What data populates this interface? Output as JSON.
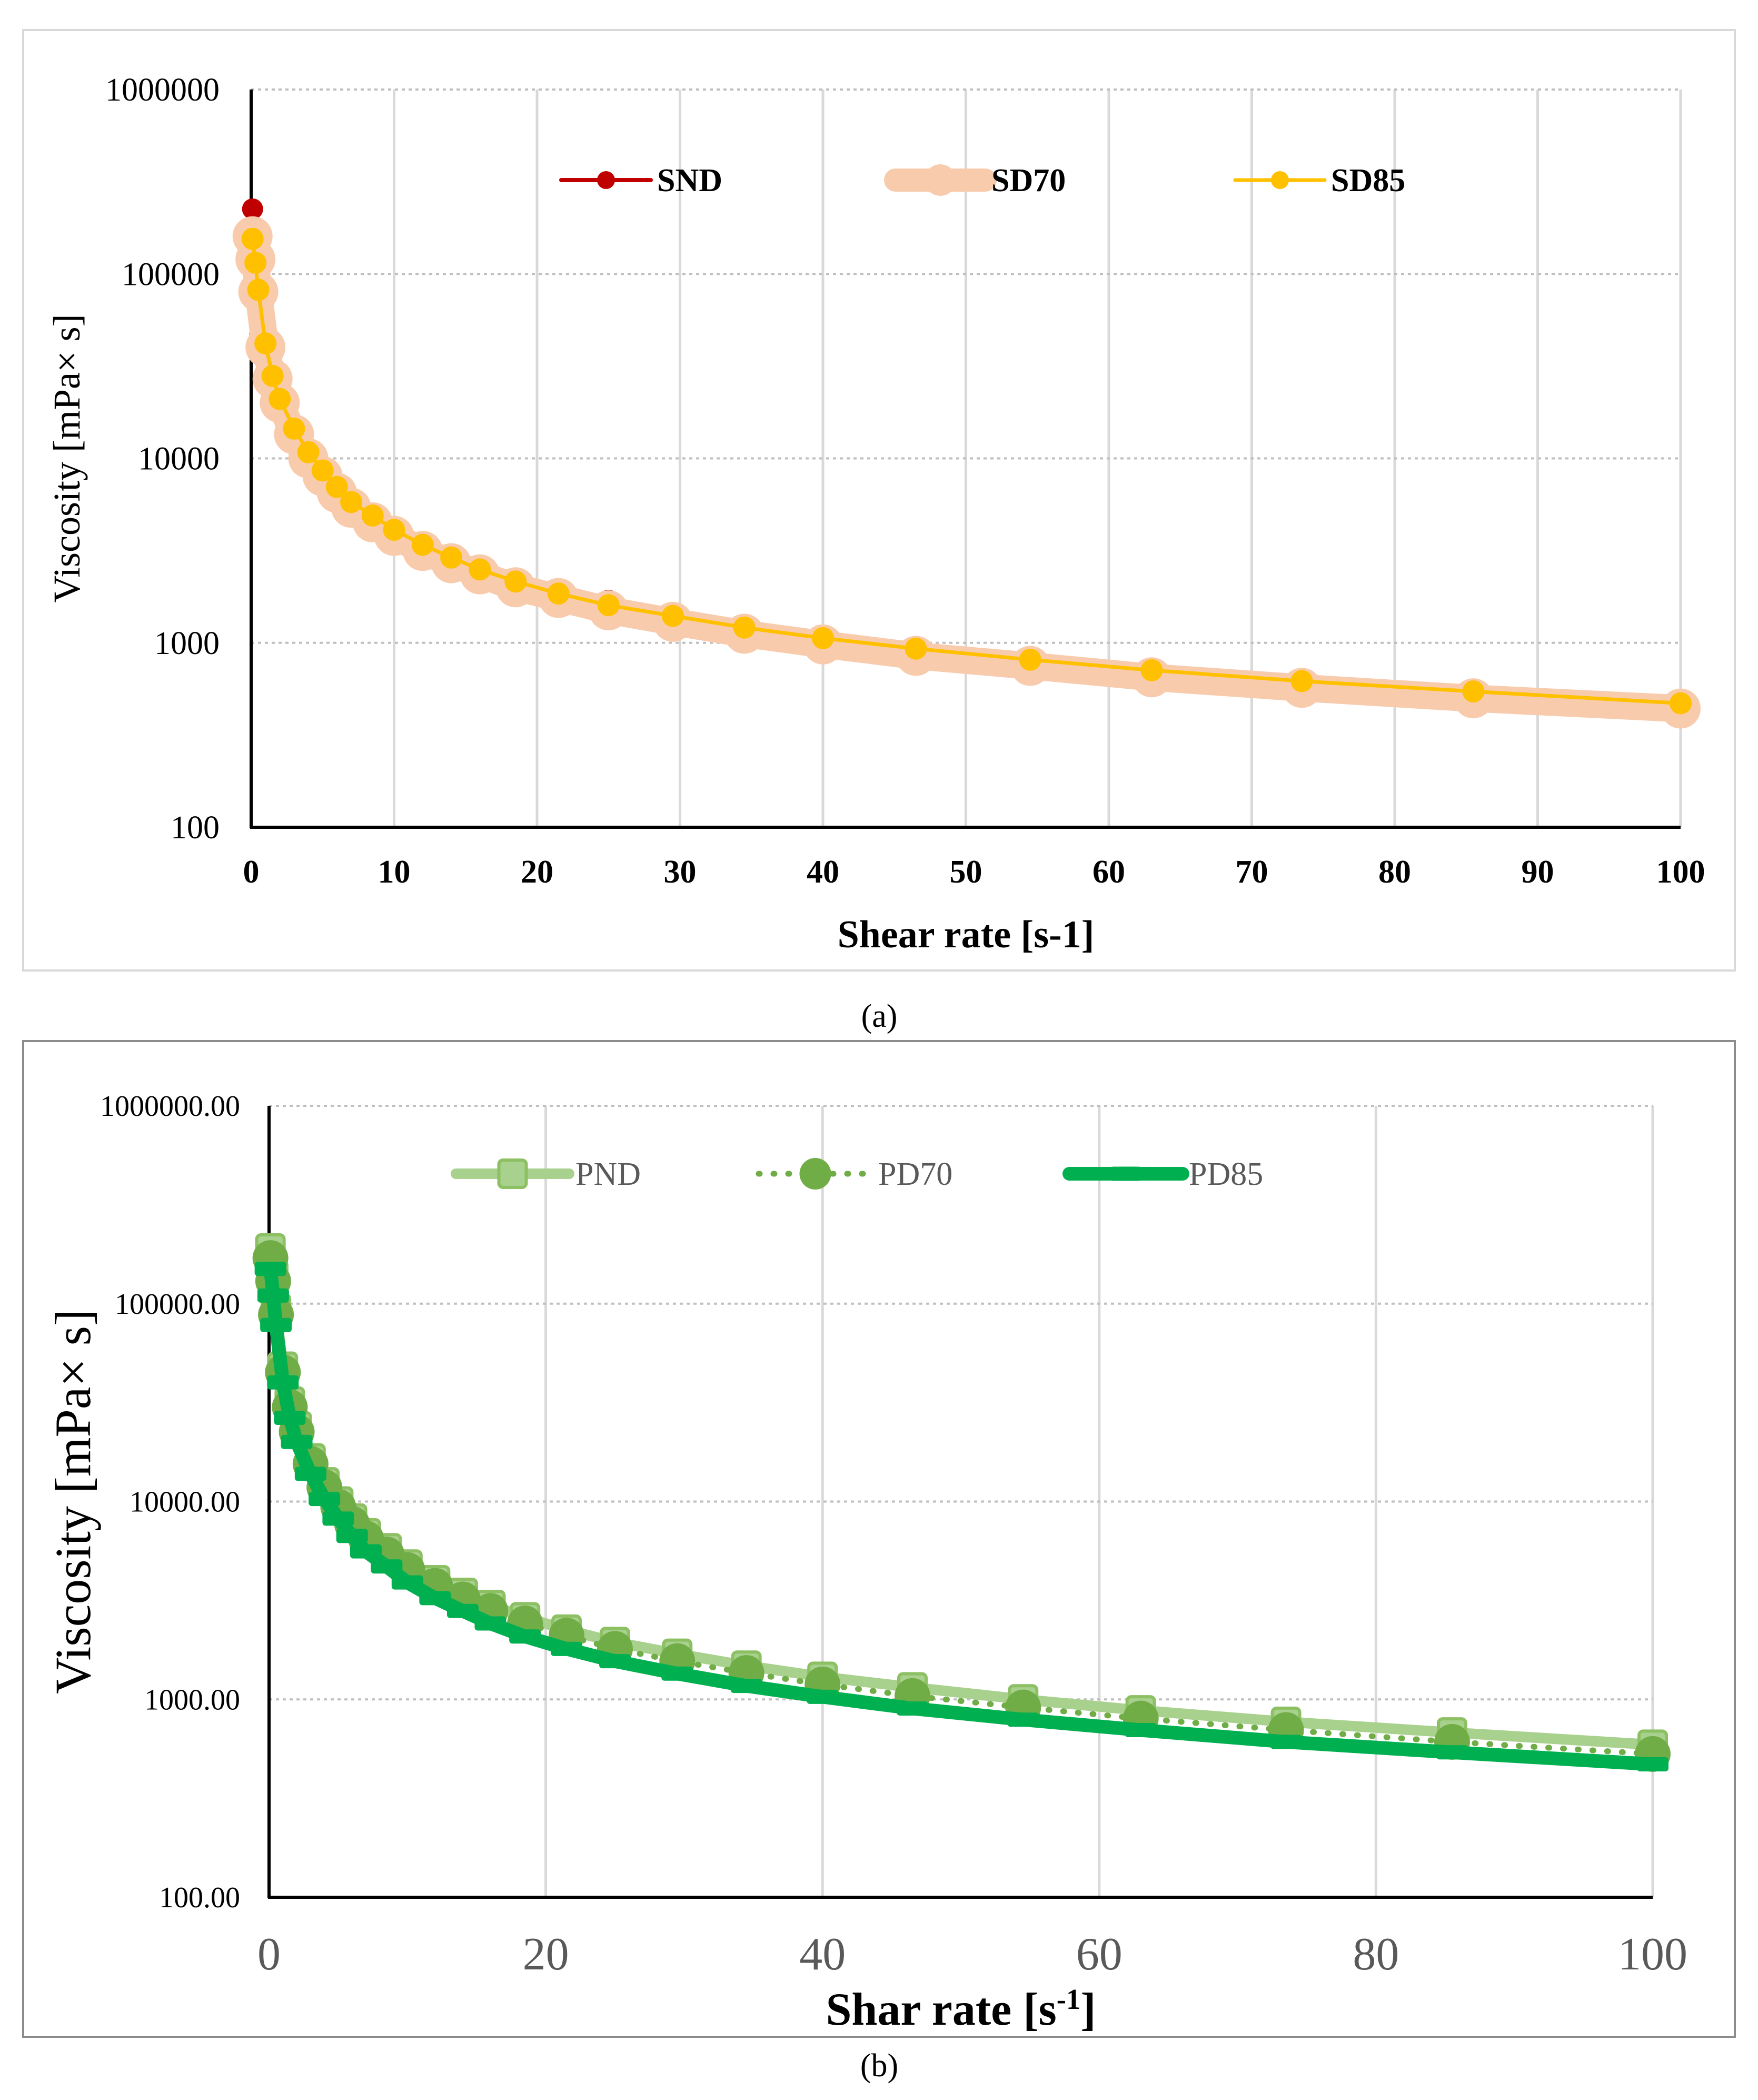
{
  "chart_data": [
    {
      "type": "line",
      "panel": "a",
      "caption": "(a)",
      "xlabel": "Shear rate [s-1]",
      "ylabel": "Viscosity [mPa× s]",
      "yscale": "log",
      "xlim": [
        0,
        100
      ],
      "ylim": [
        100,
        1000000
      ],
      "x_ticks": [
        "0",
        "10",
        "20",
        "30",
        "40",
        "50",
        "60",
        "70",
        "80",
        "90",
        "100"
      ],
      "y_ticks": [
        "100",
        "1000",
        "10000",
        "100000",
        "1000000"
      ],
      "grid": true,
      "legend_position": "top",
      "x": [
        0.1,
        0.3,
        0.5,
        1,
        1.5,
        2,
        3,
        4,
        5,
        6,
        7,
        8.5,
        10,
        12,
        14,
        16,
        18.5,
        21.5,
        25,
        29.5,
        34.5,
        40,
        46.5,
        54.5,
        63,
        73.5,
        85.5,
        100
      ],
      "series": [
        {
          "name": "SND",
          "color": "#c00000",
          "values": [
            225000,
            150000,
            90000,
            45000,
            30000,
            22000,
            15000,
            11000,
            8800,
            7200,
            6000,
            5000,
            4200,
            3500,
            3000,
            2600,
            2250,
            1950,
            1700,
            1450,
            1250,
            1080,
            950,
            820,
            720,
            630,
            550,
            470
          ]
        },
        {
          "name": "SD70",
          "color": "#f8cbad",
          "values": [
            160000,
            120000,
            80000,
            40000,
            27000,
            20000,
            13500,
            10000,
            8000,
            6500,
            5400,
            4500,
            3800,
            3150,
            2700,
            2350,
            2000,
            1750,
            1500,
            1300,
            1120,
            980,
            850,
            750,
            650,
            570,
            500,
            440
          ]
        },
        {
          "name": "SD85",
          "color": "#ffc000",
          "values": [
            155000,
            115000,
            82000,
            42000,
            28000,
            21000,
            14500,
            10800,
            8600,
            7000,
            5800,
            4900,
            4100,
            3400,
            2900,
            2500,
            2150,
            1850,
            1600,
            1400,
            1210,
            1060,
            930,
            810,
            710,
            620,
            545,
            470
          ]
        }
      ]
    },
    {
      "type": "line",
      "panel": "b",
      "caption": "(b)",
      "xlabel": "Shar rate [s",
      "xlabel_sup": "-1",
      "xlabel_end": "]",
      "ylabel": "Viscosity [mPa× s]",
      "yscale": "log",
      "xlim": [
        0,
        100
      ],
      "ylim": [
        100,
        1000000
      ],
      "x_ticks": [
        "0",
        "20",
        "40",
        "60",
        "80",
        "100"
      ],
      "y_ticks": [
        "100.00",
        "1000.00",
        "10000.00",
        "100000.00",
        "1000000.00"
      ],
      "grid": true,
      "legend_position": "top",
      "x": [
        0.1,
        0.3,
        0.5,
        1,
        1.5,
        2,
        3,
        4,
        5,
        6,
        7,
        8.5,
        10,
        12,
        14,
        16,
        18.5,
        21.5,
        25,
        29.5,
        34.5,
        40,
        46.5,
        54.5,
        63,
        73.5,
        85.5,
        100
      ],
      "series": [
        {
          "name": "PND",
          "color": "#a9d18e",
          "values": [
            190000,
            140000,
            95000,
            48000,
            32000,
            24000,
            16500,
            12500,
            10000,
            8200,
            6900,
            5800,
            4800,
            4000,
            3450,
            3000,
            2600,
            2250,
            1950,
            1700,
            1480,
            1300,
            1150,
            1000,
            880,
            770,
            680,
            590
          ]
        },
        {
          "name": "PD70",
          "color": "#70ad47",
          "values": [
            170000,
            130000,
            88000,
            45000,
            30000,
            22500,
            15500,
            11800,
            9400,
            7700,
            6500,
            5400,
            4500,
            3750,
            3200,
            2800,
            2420,
            2100,
            1800,
            1560,
            1360,
            1190,
            1040,
            910,
            800,
            700,
            610,
            530
          ]
        },
        {
          "name": "PD85",
          "color": "#00b050",
          "values": [
            150000,
            110000,
            78000,
            40000,
            26500,
            20000,
            13800,
            10300,
            8200,
            6700,
            5600,
            4700,
            3900,
            3250,
            2800,
            2420,
            2080,
            1800,
            1560,
            1350,
            1170,
            1030,
            900,
            790,
            700,
            610,
            540,
            470
          ]
        }
      ]
    }
  ]
}
